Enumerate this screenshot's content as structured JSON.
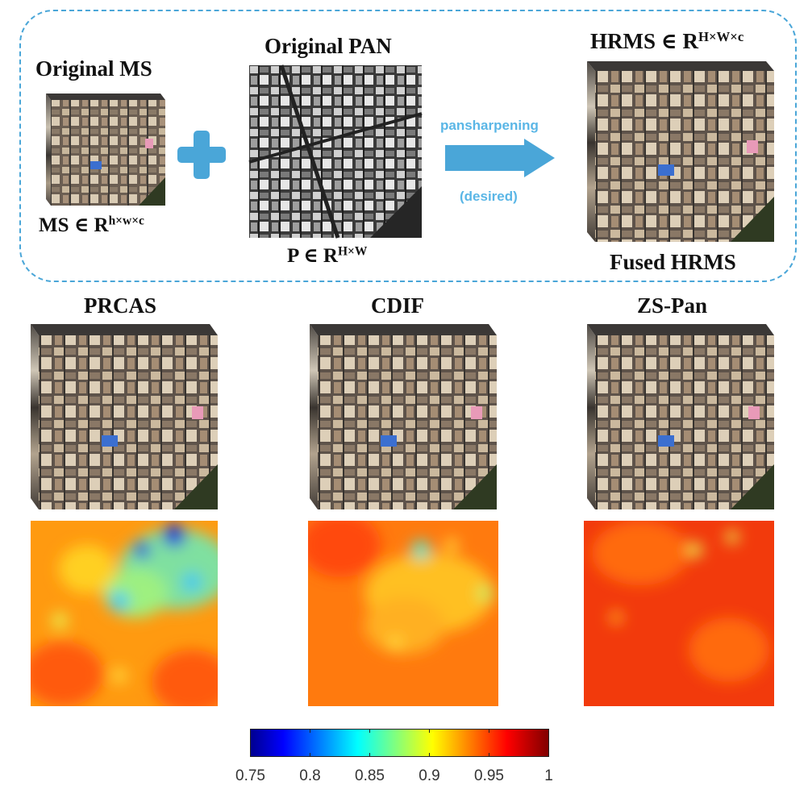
{
  "top": {
    "ms_title": "Original MS",
    "ms_caption": "MS ∈ R",
    "ms_caption_sup": "h×w×c",
    "pan_title": "Original PAN",
    "pan_caption": "P ∈ R",
    "pan_caption_sup": "H×W",
    "arrow_top": "pansharpening",
    "arrow_bottom": "(desired)",
    "hrms_title": "HRMS ∈ R",
    "hrms_title_sup": "H×W×c",
    "hrms_caption": "Fused HRMS"
  },
  "methods": [
    {
      "name": "PRCAS"
    },
    {
      "name": "CDIF"
    },
    {
      "name": "ZS-Pan"
    }
  ],
  "colorbar": {
    "colormap": "jet",
    "ticks": [
      "0.75",
      "0.8",
      "0.85",
      "0.9",
      "0.95",
      "1"
    ]
  },
  "colors": {
    "accent": "#4aa6d8",
    "plus": "#4aa6d8"
  }
}
